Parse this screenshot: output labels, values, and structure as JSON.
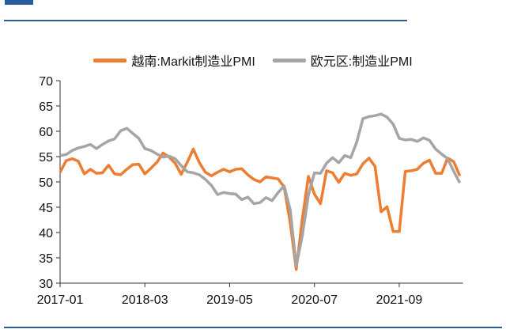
{
  "chart_data": {
    "type": "line",
    "title": "",
    "xlabel": "",
    "ylabel": "",
    "ylim": [
      30,
      70
    ],
    "yticks": [
      30,
      35,
      40,
      45,
      50,
      55,
      60,
      65,
      70
    ],
    "ytick_labels": [
      "30",
      "35",
      "40",
      "45",
      "50",
      "55",
      "60",
      "65",
      "70"
    ],
    "x_start": "2017-01",
    "x_end": "2022-07",
    "xticks": [
      "2017-01",
      "2018-03",
      "2019-05",
      "2020-07",
      "2021-09"
    ],
    "xtick_month_index": [
      0,
      14,
      28,
      42,
      56
    ],
    "legend_position": "top-center",
    "grid": false,
    "series": [
      {
        "name": "越南:Markit制造业PMI",
        "color": "#ed7d31",
        "values": [
          51.9,
          54.2,
          54.6,
          54.1,
          51.6,
          52.5,
          51.7,
          51.8,
          53.3,
          51.6,
          51.4,
          52.5,
          53.4,
          53.5,
          51.6,
          52.7,
          53.9,
          55.7,
          54.9,
          53.7,
          51.5,
          53.9,
          56.5,
          53.8,
          51.9,
          51.2,
          51.9,
          52.5,
          52.0,
          52.5,
          52.6,
          51.4,
          50.5,
          50.0,
          51.0,
          50.8,
          50.6,
          49.0,
          41.9,
          32.7,
          42.7,
          51.1,
          47.6,
          45.7,
          52.2,
          51.8,
          49.9,
          51.7,
          51.3,
          51.6,
          53.6,
          54.7,
          53.1,
          44.1,
          45.1,
          40.2,
          40.2,
          52.1,
          52.2,
          52.5,
          53.7,
          54.3,
          51.7,
          51.7,
          54.7,
          54.0,
          51.2
        ]
      },
      {
        "name": "欧元区:制造业PMI",
        "color": "#a5a5a5",
        "values": [
          55.2,
          55.4,
          56.2,
          56.7,
          57.0,
          57.4,
          56.6,
          57.4,
          58.1,
          58.5,
          60.1,
          60.6,
          59.6,
          58.6,
          56.6,
          56.2,
          55.5,
          54.9,
          55.1,
          54.6,
          53.2,
          52.0,
          51.8,
          51.4,
          50.5,
          49.3,
          47.5,
          47.9,
          47.7,
          47.6,
          46.5,
          47.0,
          45.7,
          45.9,
          46.9,
          46.3,
          47.9,
          49.2,
          44.5,
          33.4,
          39.4,
          47.4,
          51.8,
          51.7,
          53.7,
          54.8,
          53.8,
          55.2,
          54.8,
          57.9,
          62.5,
          62.9,
          63.1,
          63.4,
          62.8,
          61.4,
          58.6,
          58.3,
          58.4,
          58.0,
          58.7,
          58.2,
          56.5,
          55.5,
          54.6,
          52.1,
          49.8
        ]
      }
    ]
  }
}
